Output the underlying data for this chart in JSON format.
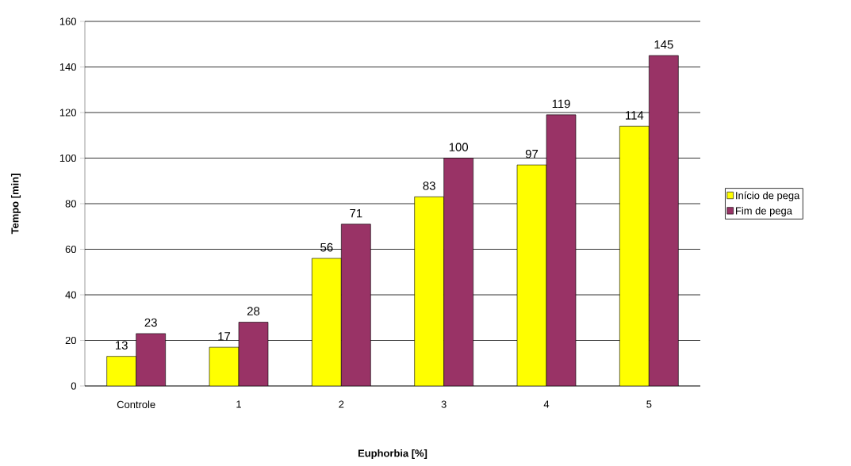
{
  "chart_data": {
    "type": "bar",
    "xlabel": "Euphorbia [%]",
    "ylabel": "Tempo [min]",
    "categories": [
      "Controle",
      "1",
      "2",
      "3",
      "4",
      "5"
    ],
    "series": [
      {
        "name": "Início de pega",
        "color": "#ffff00",
        "values": [
          13,
          17,
          56,
          83,
          97,
          114
        ]
      },
      {
        "name": "Fim de pega",
        "color": "#993366",
        "values": [
          23,
          28,
          71,
          100,
          119,
          145
        ]
      }
    ],
    "ylim": [
      0,
      160
    ],
    "yticks": [
      0,
      20,
      40,
      60,
      80,
      100,
      120,
      140,
      160
    ],
    "grid": "y",
    "legend": "right",
    "data_labels": true
  }
}
